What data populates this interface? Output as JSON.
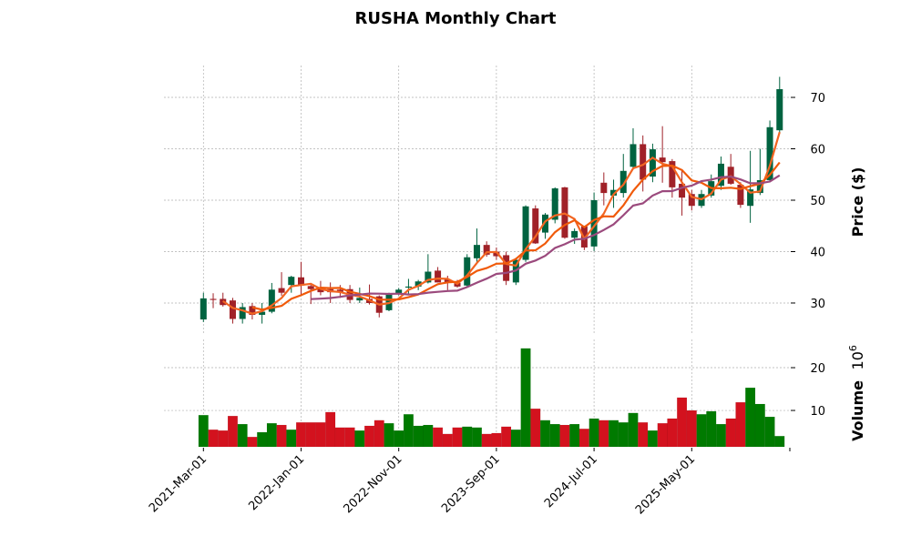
{
  "chart_data": {
    "type": "candlestick",
    "title": "RUSHA Monthly Chart",
    "ylabel": "Price ($)",
    "volume_label": "Volume",
    "volume_exponent": "10",
    "volume_exponent_power": "6",
    "start_month": "2021-03",
    "price_ylim": [
      23.8,
      76.2
    ],
    "price_yticks": [
      30,
      40,
      50,
      60,
      70
    ],
    "volume_ylim": [
      1.5,
      26.6
    ],
    "volume_yticks": [
      10,
      20
    ],
    "xtick_indices": [
      0,
      10,
      20,
      30,
      40,
      50
    ],
    "xtick_labels": [
      "2021-Mar-01",
      "2022-Jan-01",
      "2022-Nov-01",
      "2023-Sep-01",
      "2024-Jul-01",
      "2025-May-01"
    ],
    "moving_averages": [
      3,
      6,
      12
    ],
    "ohlc": [
      [
        26.8,
        32,
        26.3,
        30.9
      ],
      [
        30.8,
        31.9,
        29,
        30.6
      ],
      [
        30.8,
        32,
        29.3,
        29.6
      ],
      [
        30.5,
        31,
        26,
        26.9
      ],
      [
        26.9,
        30,
        26,
        29.2
      ],
      [
        29.4,
        30,
        26.8,
        27.7
      ],
      [
        27.7,
        30,
        26,
        28.3
      ],
      [
        28.3,
        33.9,
        28,
        32.6
      ],
      [
        32.9,
        36,
        31.4,
        32
      ],
      [
        33.5,
        35.3,
        32,
        35.1
      ],
      [
        35,
        38,
        31.6,
        33.4
      ],
      [
        33.3,
        33.8,
        29.8,
        32.7
      ],
      [
        33,
        34.3,
        31.5,
        32.1
      ],
      [
        32.7,
        34,
        30,
        32.1
      ],
      [
        32.6,
        33.5,
        31,
        32.2
      ],
      [
        32.7,
        33.5,
        30,
        30.6
      ],
      [
        30.5,
        33,
        30,
        31
      ],
      [
        30.8,
        33.6,
        29.7,
        30
      ],
      [
        31.3,
        31.5,
        27.2,
        28.1
      ],
      [
        28.6,
        32,
        28.4,
        31.9
      ],
      [
        31.8,
        32.9,
        31.5,
        32.6
      ],
      [
        33,
        34.7,
        31.8,
        33.2
      ],
      [
        33.2,
        34.5,
        32.5,
        34.2
      ],
      [
        34,
        39.5,
        33.8,
        36.1
      ],
      [
        36.3,
        37,
        34,
        34
      ],
      [
        34.6,
        35.3,
        32.5,
        34
      ],
      [
        33.9,
        34.5,
        33,
        33.2
      ],
      [
        33.4,
        39.5,
        33,
        38.9
      ],
      [
        38.7,
        44.5,
        38,
        41.3
      ],
      [
        41.3,
        42,
        39,
        39.4
      ],
      [
        40,
        40.8,
        38.4,
        39.1
      ],
      [
        39.3,
        40,
        33.5,
        34.3
      ],
      [
        34,
        38.8,
        33.5,
        38.4
      ],
      [
        38.4,
        49,
        38,
        48.8
      ],
      [
        48.4,
        49,
        41.5,
        41.6
      ],
      [
        43.7,
        47.5,
        42.5,
        47.2
      ],
      [
        46.2,
        52.5,
        45.5,
        52.3
      ],
      [
        52.5,
        52.6,
        42.5,
        42.7
      ],
      [
        42.7,
        44.5,
        41.5,
        44.0
      ],
      [
        44.9,
        45,
        40.3,
        40.8
      ],
      [
        41,
        51.5,
        40.1,
        50
      ],
      [
        53.4,
        55.4,
        49,
        51.4
      ],
      [
        50.9,
        54,
        48.5,
        52
      ],
      [
        51.4,
        59,
        50.5,
        55.7
      ],
      [
        56.5,
        64,
        56,
        60.9
      ],
      [
        60.9,
        62.6,
        51.7,
        54
      ],
      [
        54.6,
        61,
        53.5,
        59.9
      ],
      [
        58.3,
        64.4,
        53.4,
        57.4
      ],
      [
        57.6,
        58,
        50.5,
        52.5
      ],
      [
        53.2,
        56,
        47,
        50.5
      ],
      [
        51.2,
        52,
        48,
        48.9
      ],
      [
        48.9,
        52,
        48.5,
        51.2
      ],
      [
        50.9,
        55,
        50.5,
        53.7
      ],
      [
        52.8,
        58.5,
        52,
        57.1
      ],
      [
        56.5,
        59,
        53,
        53.2
      ],
      [
        53,
        53.5,
        48.5,
        49.1
      ],
      [
        48.9,
        59.6,
        45.6,
        52.1
      ],
      [
        51.4,
        60,
        51,
        53.9
      ],
      [
        53.9,
        65.5,
        53.5,
        64.2
      ],
      [
        63.6,
        74,
        63,
        71.6
      ]
    ],
    "volume_millions": [
      8.9,
      5.5,
      5.3,
      8.7,
      6.8,
      3.8,
      4.9,
      7.0,
      6.6,
      5.5,
      7.2,
      7.2,
      7.2,
      9.6,
      6.0,
      6.0,
      5.3,
      6.4,
      7.7,
      7.0,
      5.3,
      9.1,
      6.4,
      6.6,
      6.0,
      4.5,
      6.0,
      6.2,
      6.0,
      4.5,
      4.7,
      6.2,
      5.5,
      24.5,
      10.4,
      7.7,
      6.8,
      6.6,
      6.8,
      5.7,
      8.1,
      7.7,
      7.7,
      7.2,
      9.4,
      7.2,
      5.3,
      7.0,
      8.1,
      13.0,
      10.0,
      9.1,
      9.8,
      6.8,
      8.1,
      11.9,
      15.3,
      11.5,
      8.5,
      4.0
    ],
    "colors": {
      "up_candle": "#006340",
      "down_candle": "#a02128",
      "up_volume": "#007a00",
      "down_volume": "#d3121e",
      "mav": [
        "#f26522",
        "#f05a0a",
        "#9b4a7d"
      ],
      "grid": "#b0b0b0"
    }
  }
}
